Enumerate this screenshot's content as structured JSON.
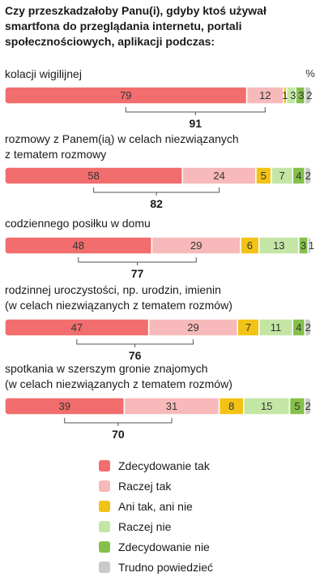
{
  "title": "Czy przeszkadzałoby Panu(i), gdyby ktoś używał smartfona do przeglądania internetu, portali społecznościowych, aplikacji podczas:",
  "unit_label": "%",
  "colors": {
    "zdecydowanie_tak": "#f26d6d",
    "raczej_tak": "#f7b9b9",
    "ani_tak_ani_nie": "#f2c314",
    "raczej_nie": "#c4e6a5",
    "zdecydowanie_nie": "#84c14a",
    "trudno_powiedziec": "#c9c9c9"
  },
  "chart_data": {
    "type": "bar",
    "orientation": "horizontal-stacked",
    "title": "Czy przeszkadzałoby Panu(i), gdyby ktoś używał smartfona do przeglądania internetu, portali społecznościowych, aplikacji podczas:",
    "unit": "%",
    "categories": [
      [
        "kolacji wigilijnej"
      ],
      [
        "rozmowy z Panem(ią)  w celach niezwiązanych",
        "z tematem rozmowy"
      ],
      [
        "codziennego posiłku w domu"
      ],
      [
        "rodzinnej uroczystości, np. urodzin, imienin",
        "(w celach niezwiązanych z tematem rozmów)"
      ],
      [
        "spotkania w szerszym gronie znajomych",
        "(w celach niezwiązanych z tematem rozmów)"
      ]
    ],
    "series": [
      {
        "name": "Zdecydowanie tak",
        "values": [
          79,
          58,
          48,
          47,
          39
        ]
      },
      {
        "name": "Raczej tak",
        "values": [
          12,
          24,
          29,
          29,
          31
        ]
      },
      {
        "name": "Ani tak, ani nie",
        "values": [
          1,
          5,
          6,
          7,
          8
        ]
      },
      {
        "name": "Raczej nie",
        "values": [
          3,
          7,
          13,
          11,
          15
        ]
      },
      {
        "name": "Zdecydowanie nie",
        "values": [
          3,
          4,
          3,
          4,
          5
        ]
      },
      {
        "name": "Trudno powiedzieć",
        "values": [
          2,
          2,
          1,
          2,
          2
        ]
      }
    ],
    "totals_yes": [
      91,
      82,
      77,
      76,
      70
    ],
    "legend_position": "bottom"
  }
}
